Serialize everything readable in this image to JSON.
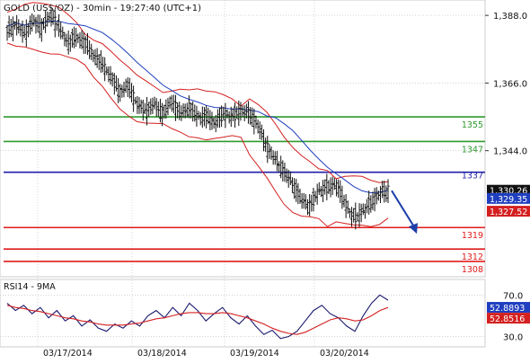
{
  "chart_data": [
    {
      "type": "candlestick",
      "title": "GOLD (US$/OZ) - 30min - 19:27:40 (UTC+1)",
      "ylim": [
        1303,
        1393
      ],
      "y_ticks": [
        "1,388.0",
        "1,366.0",
        "1,344.0"
      ],
      "y_tick_values": [
        1388,
        1366,
        1344
      ],
      "x_ticks": [
        "03/17/2014",
        "03/18/2014",
        "03/19/2014",
        "03/20/2014"
      ],
      "overlays": [
        "Bollinger Bands",
        "Moving Average"
      ],
      "levels": [
        {
          "label": "1355",
          "value": 1355,
          "color": "#2e9a2e"
        },
        {
          "label": "1347",
          "value": 1347,
          "color": "#2e9a2e"
        },
        {
          "label": "1337",
          "value": 1337,
          "color": "#1f1fa8"
        },
        {
          "label": "1319",
          "value": 1319,
          "color": "#e01b1b"
        },
        {
          "label": "1312",
          "value": 1312,
          "color": "#e01b1b"
        },
        {
          "label": "1308",
          "value": 1308,
          "color": "#e01b1b"
        }
      ],
      "price_tags": [
        {
          "label": "1,330.26",
          "value": 1330.26,
          "color": "#111111"
        },
        {
          "label": "1,329.35",
          "value": 1329.35,
          "color": "#1f3fbf"
        },
        {
          "label": "1,327.52",
          "value": 1327.52,
          "color": "#d42020"
        }
      ],
      "close_path": [
        1383,
        1385,
        1382,
        1386,
        1384,
        1388,
        1384,
        1379,
        1381,
        1379,
        1375,
        1372,
        1368,
        1363,
        1365,
        1359,
        1357,
        1359,
        1356,
        1360,
        1356,
        1358,
        1355,
        1355,
        1353,
        1356,
        1355,
        1357,
        1356,
        1352,
        1345,
        1341,
        1337,
        1333,
        1328,
        1326,
        1331,
        1332,
        1333,
        1327,
        1322,
        1324,
        1327,
        1330,
        1331
      ],
      "arrow": {
        "from": [
          1336,
          1331
        ],
        "to": [
          1389,
          1317
        ],
        "color": "#1f3fa8"
      }
    },
    {
      "type": "line",
      "title": "RSI14 - 9MA",
      "ylim": [
        20,
        85
      ],
      "y_ticks": [
        "70.0",
        "30.0"
      ],
      "y_tick_values": [
        70,
        30
      ],
      "series": [
        {
          "name": "RSI14",
          "color": "#1a1a6e",
          "values": [
            62,
            55,
            60,
            52,
            58,
            48,
            55,
            45,
            50,
            40,
            46,
            38,
            35,
            42,
            38,
            45,
            40,
            50,
            55,
            48,
            58,
            50,
            62,
            55,
            45,
            52,
            58,
            48,
            42,
            50,
            40,
            32,
            36,
            28,
            30,
            35,
            45,
            55,
            60,
            52,
            48,
            40,
            35,
            50,
            62,
            70,
            65
          ]
        },
        {
          "name": "9MA",
          "color": "#d42020",
          "values": [
            60,
            58,
            57,
            55,
            54,
            52,
            50,
            48,
            47,
            45,
            44,
            42,
            41,
            41,
            41,
            42,
            43,
            45,
            47,
            48,
            50,
            52,
            53,
            53,
            52,
            52,
            53,
            52,
            50,
            48,
            45,
            42,
            38,
            35,
            33,
            32,
            34,
            38,
            42,
            46,
            48,
            47,
            45,
            46,
            50,
            55,
            58
          ]
        }
      ],
      "last_values": [
        {
          "label": "52.8893",
          "value": 52.8893,
          "color": "#1f3fbf"
        },
        {
          "label": "52.8516",
          "value": 52.8516,
          "color": "#d42020"
        }
      ]
    }
  ]
}
